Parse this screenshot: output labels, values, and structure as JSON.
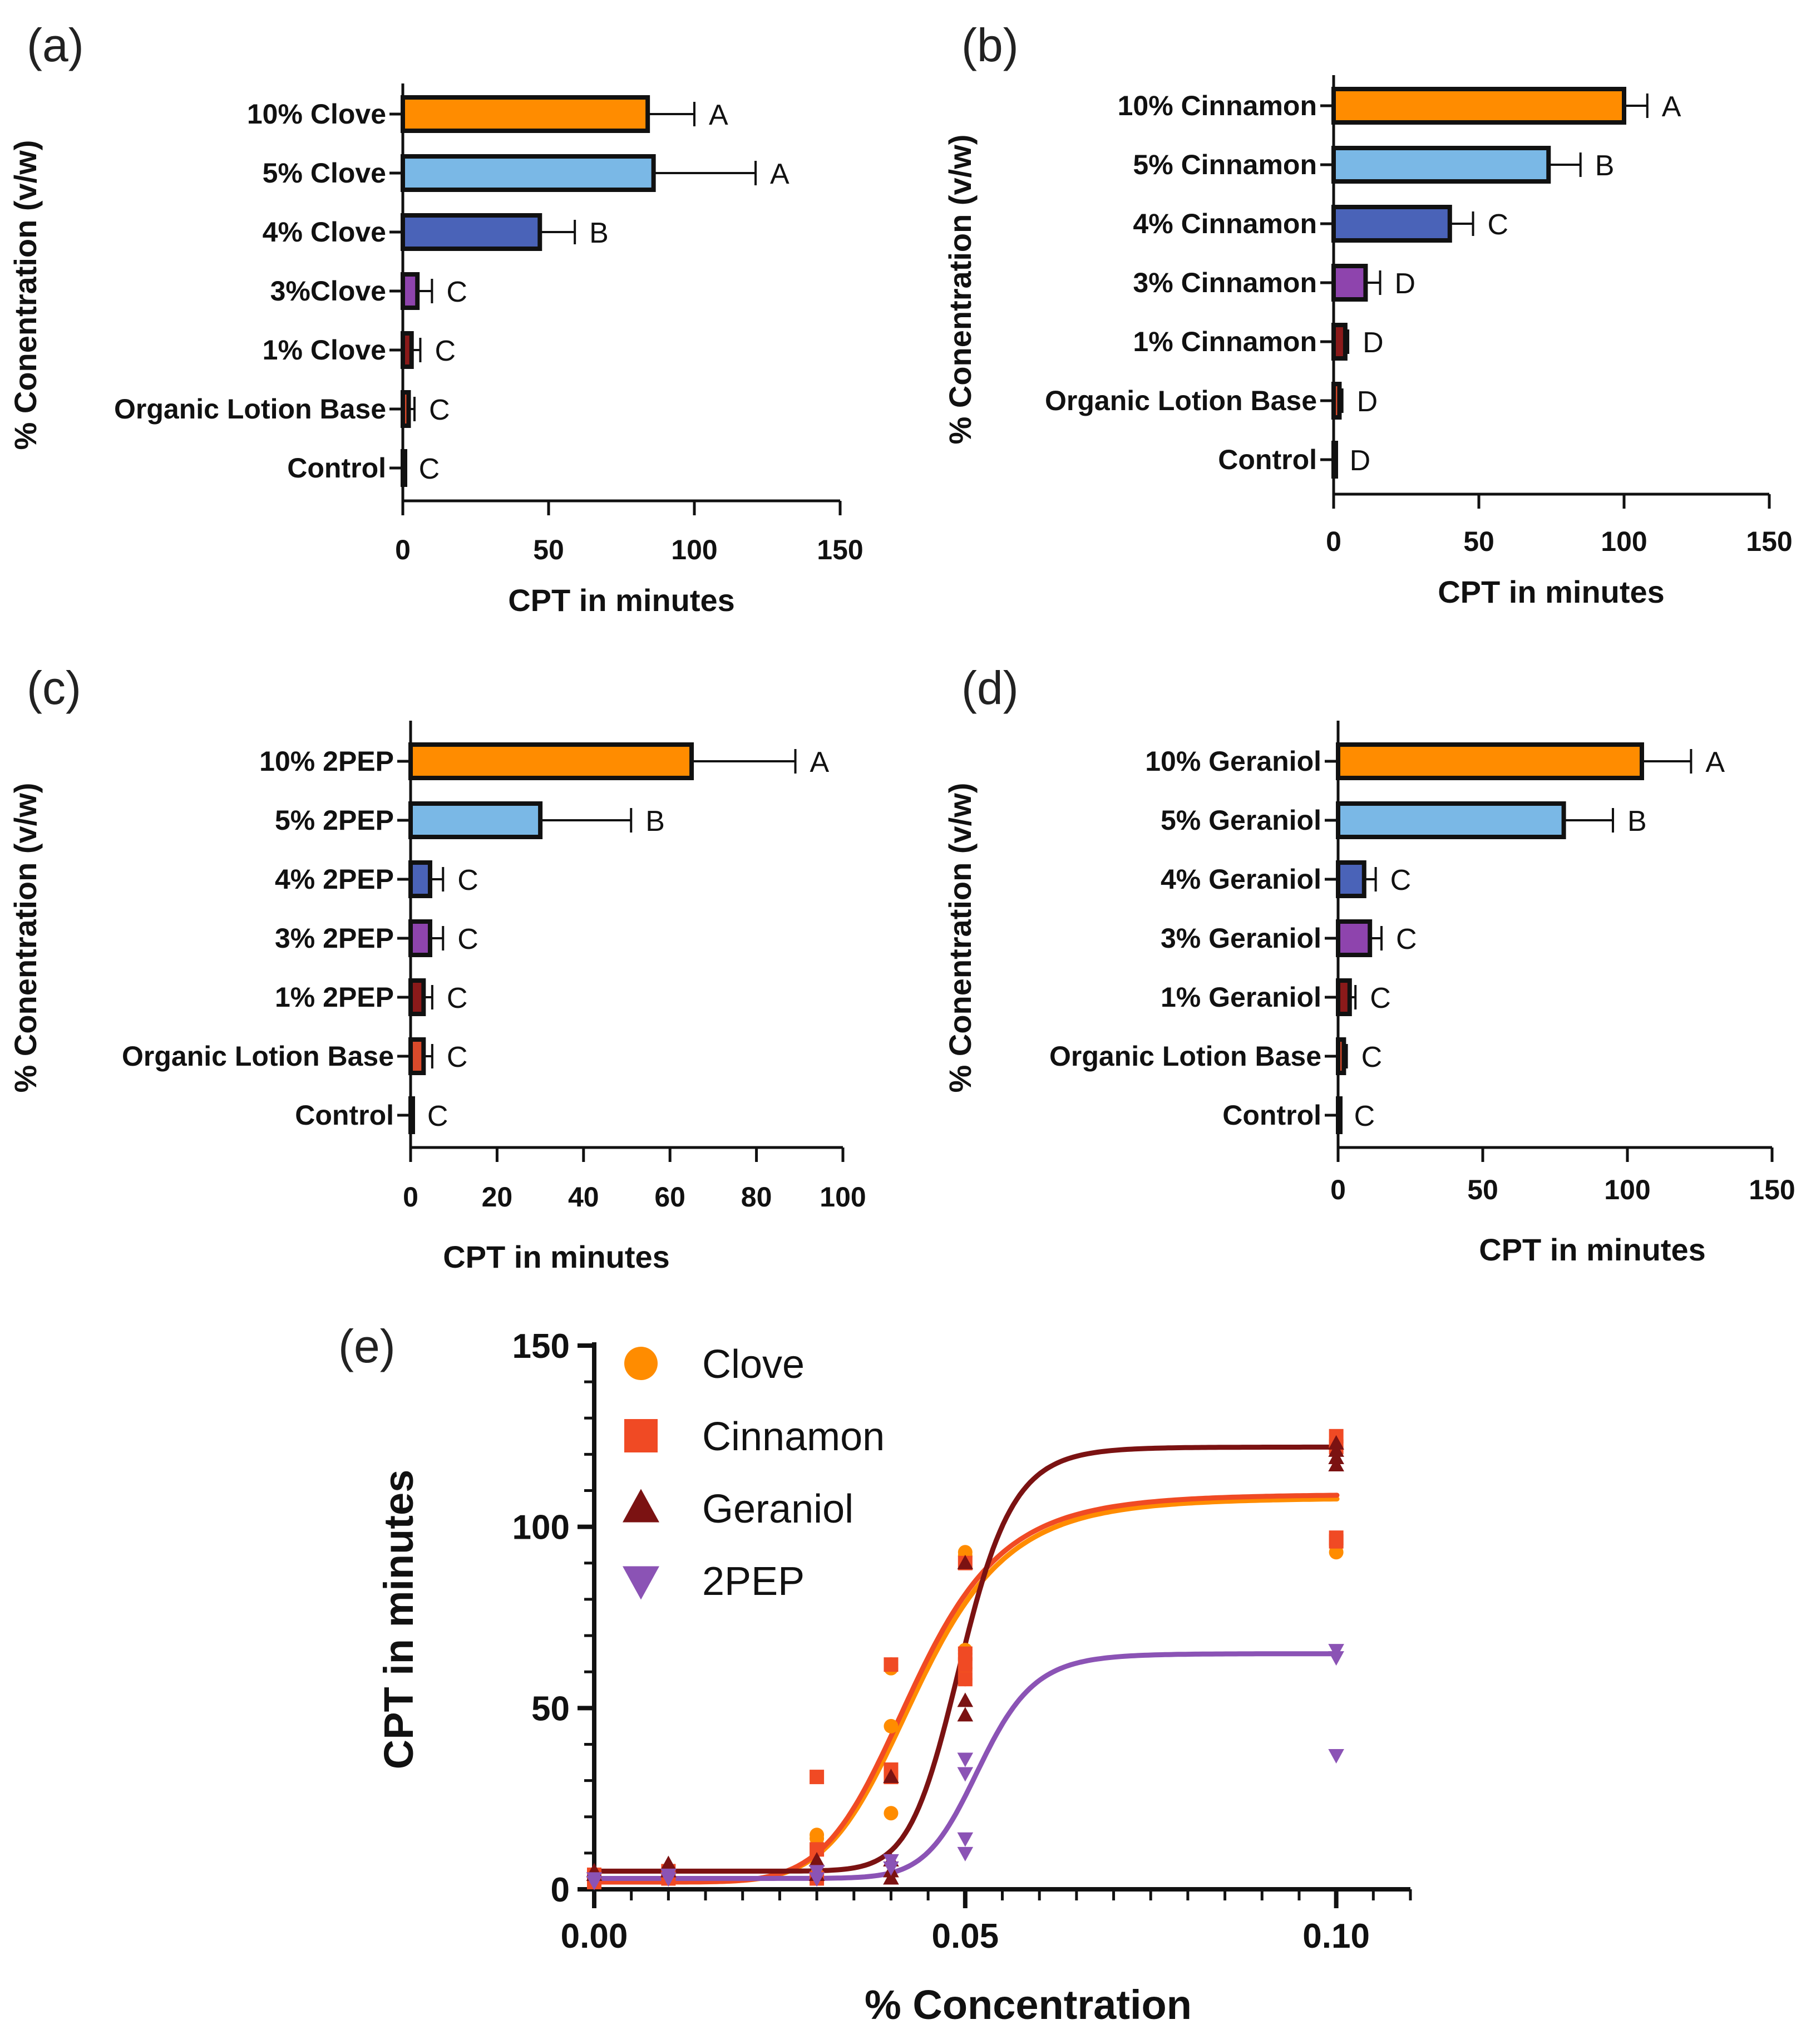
{
  "chart_data": [
    {
      "type": "bar",
      "orientation": "horizontal",
      "panel_label": "(a)",
      "categories": [
        "10% Clove",
        "5% Clove",
        "4% Clove",
        "3%Clove",
        "1% Clove",
        "Organic Lotion Base",
        "Control"
      ],
      "values": [
        84,
        86,
        47,
        5,
        3,
        2,
        0.5
      ],
      "errors": [
        16,
        35,
        12,
        5,
        3,
        2,
        0
      ],
      "significance": [
        "A",
        "A",
        "B",
        "C",
        "C",
        "C",
        "C"
      ],
      "colors": [
        "#FF8C00",
        "#7AB8E6",
        "#4A63B8",
        "#8E44AD",
        "#8B1A1A",
        "#D94A2B",
        "#222222"
      ],
      "xlabel": "CPT in minutes",
      "ylabel": "% Conentration (v/w)",
      "xlim": [
        0,
        150
      ],
      "xticks": [
        "0",
        "50",
        "100",
        "150"
      ]
    },
    {
      "type": "bar",
      "orientation": "horizontal",
      "panel_label": "(b)",
      "categories": [
        "10% Cinnamon",
        "5% Cinnamon",
        "4% Cinnamon",
        "3% Cinnamon",
        "1% Cinnamon",
        "Organic Lotion Base",
        "Control"
      ],
      "values": [
        100,
        74,
        40,
        11,
        4,
        2,
        0.5
      ],
      "errors": [
        8,
        11,
        8,
        5,
        1,
        1,
        0
      ],
      "significance": [
        "A",
        "B",
        "C",
        "D",
        "D",
        "D",
        "D"
      ],
      "colors": [
        "#FF8C00",
        "#7AB8E6",
        "#4A63B8",
        "#8E44AD",
        "#8B1A1A",
        "#D94A2B",
        "#222222"
      ],
      "xlabel": "CPT in minutes",
      "ylabel": "% Conentration (v/w)",
      "xlim": [
        0,
        150
      ],
      "xticks": [
        "0",
        "50",
        "100",
        "150"
      ]
    },
    {
      "type": "bar",
      "orientation": "horizontal",
      "panel_label": "(c)",
      "categories": [
        "10% 2PEP",
        "5% 2PEP",
        "4% 2PEP",
        "3% 2PEP",
        "1% 2PEP",
        "Organic Lotion Base",
        "Control"
      ],
      "values": [
        65,
        30,
        4.5,
        4.5,
        3,
        3,
        0.5
      ],
      "errors": [
        24,
        21,
        3,
        3,
        2,
        2,
        0
      ],
      "significance": [
        "A",
        "B",
        "C",
        "C",
        "C",
        "C",
        "C"
      ],
      "colors": [
        "#FF8C00",
        "#7AB8E6",
        "#4A63B8",
        "#8E44AD",
        "#8B1A1A",
        "#D94A2B",
        "#222222"
      ],
      "xlabel": "CPT in minutes",
      "ylabel": "% Conentration (v/w)",
      "xlim": [
        0,
        100
      ],
      "xticks": [
        "0",
        "20",
        "40",
        "60",
        "80",
        "100"
      ]
    },
    {
      "type": "bar",
      "orientation": "horizontal",
      "panel_label": "(d)",
      "categories": [
        "10% Geraniol",
        "5% Geraniol",
        "4% Geraniol",
        "3% Geraniol",
        "1% Geraniol",
        "Organic Lotion Base",
        "Control"
      ],
      "values": [
        105,
        78,
        9,
        11,
        4,
        2,
        0.5
      ],
      "errors": [
        17,
        17,
        4,
        4,
        2,
        1,
        0
      ],
      "significance": [
        "A",
        "B",
        "C",
        "C",
        "C",
        "C",
        "C"
      ],
      "colors": [
        "#FF8C00",
        "#7AB8E6",
        "#4A63B8",
        "#8E44AD",
        "#8B1A1A",
        "#D94A2B",
        "#222222"
      ],
      "xlabel": "CPT in minutes",
      "ylabel": "% Conentration (v/w)",
      "xlim": [
        0,
        150
      ],
      "xticks": [
        "0",
        "50",
        "100",
        "150"
      ]
    },
    {
      "type": "scatter",
      "panel_label": "(e)",
      "xlabel": "% Concentration",
      "ylabel": "CPT in minutes",
      "xlim": [
        0,
        0.11
      ],
      "ylim": [
        0,
        150
      ],
      "xticks": [
        "0.00",
        "0.05",
        "0.10"
      ],
      "yticks": [
        "0",
        "50",
        "100",
        "150"
      ],
      "legend_position": "top-left",
      "series": [
        {
          "name": "Clove",
          "marker": "circle",
          "color": "#FF8C00",
          "points": [
            [
              0,
              3
            ],
            [
              0,
              4
            ],
            [
              0.01,
              3
            ],
            [
              0.01,
              4
            ],
            [
              0.03,
              4
            ],
            [
              0.03,
              14
            ],
            [
              0.03,
              15
            ],
            [
              0.04,
              21
            ],
            [
              0.04,
              45
            ],
            [
              0.04,
              61
            ],
            [
              0.04,
              62
            ],
            [
              0.05,
              58
            ],
            [
              0.05,
              61
            ],
            [
              0.05,
              65
            ],
            [
              0.05,
              66
            ],
            [
              0.05,
              92
            ],
            [
              0.05,
              93
            ],
            [
              0.1,
              93
            ],
            [
              0.1,
              95
            ],
            [
              0.1,
              122
            ],
            [
              0.1,
              124
            ]
          ],
          "fit": {
            "bottom": 2,
            "top": 108,
            "ec50": 0.0435,
            "hill": 7.0
          }
        },
        {
          "name": "Cinnamon",
          "marker": "square",
          "color": "#F04A24",
          "points": [
            [
              0,
              2
            ],
            [
              0,
              4
            ],
            [
              0.01,
              3
            ],
            [
              0.01,
              5
            ],
            [
              0.03,
              3
            ],
            [
              0.03,
              11
            ],
            [
              0.03,
              31
            ],
            [
              0.04,
              31
            ],
            [
              0.04,
              33
            ],
            [
              0.04,
              62
            ],
            [
              0.05,
              58
            ],
            [
              0.05,
              62
            ],
            [
              0.05,
              65
            ],
            [
              0.05,
              90
            ],
            [
              0.1,
              96
            ],
            [
              0.1,
              97
            ],
            [
              0.1,
              122
            ],
            [
              0.1,
              125
            ]
          ],
          "fit": {
            "bottom": 2,
            "top": 109,
            "ec50": 0.043,
            "hill": 7.0
          }
        },
        {
          "name": "Geraniol",
          "marker": "triangle-up",
          "color": "#7B1212",
          "points": [
            [
              0,
              4
            ],
            [
              0,
              5
            ],
            [
              0.01,
              5
            ],
            [
              0.01,
              7
            ],
            [
              0.03,
              4
            ],
            [
              0.03,
              8
            ],
            [
              0.04,
              3
            ],
            [
              0.04,
              5
            ],
            [
              0.04,
              8
            ],
            [
              0.04,
              31
            ],
            [
              0.05,
              48
            ],
            [
              0.05,
              52
            ],
            [
              0.05,
              90
            ],
            [
              0.1,
              117
            ],
            [
              0.1,
              119
            ],
            [
              0.1,
              121
            ],
            [
              0.1,
              123
            ]
          ],
          "fit": {
            "bottom": 5,
            "top": 122,
            "ec50": 0.0495,
            "hill": 14.0
          }
        },
        {
          "name": "2PEP",
          "marker": "triangle-down",
          "color": "#8B53B5",
          "points": [
            [
              0,
              2
            ],
            [
              0,
              3
            ],
            [
              0.01,
              3
            ],
            [
              0.01,
              4
            ],
            [
              0.03,
              3
            ],
            [
              0.03,
              5
            ],
            [
              0.04,
              6
            ],
            [
              0.04,
              8
            ],
            [
              0.05,
              10
            ],
            [
              0.05,
              14
            ],
            [
              0.05,
              32
            ],
            [
              0.05,
              36
            ],
            [
              0.1,
              37
            ],
            [
              0.1,
              64
            ],
            [
              0.1,
              66
            ]
          ],
          "fit": {
            "bottom": 3,
            "top": 65,
            "ec50": 0.052,
            "hill": 14.0
          }
        }
      ]
    }
  ]
}
